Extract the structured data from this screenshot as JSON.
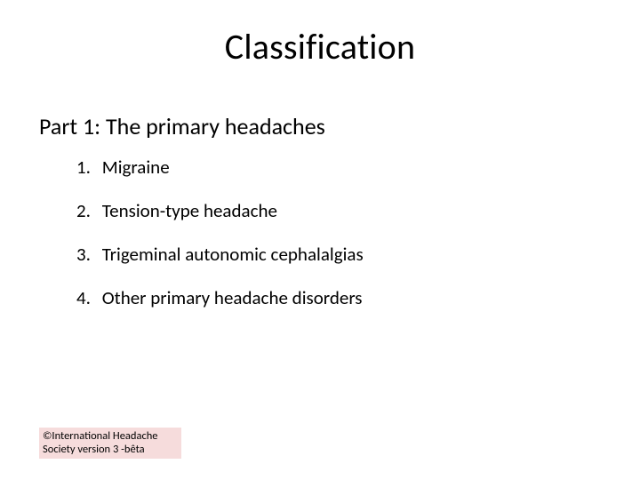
{
  "title": "Classification",
  "subtitle": "Part 1: The primary headaches",
  "items": [
    {
      "num": "1.",
      "text": "Migraine"
    },
    {
      "num": "2.",
      "text": "Tension-type headache"
    },
    {
      "num": "3.",
      "text": "Trigeminal autonomic cephalalgias"
    },
    {
      "num": "4.",
      "text": "Other primary headache disorders"
    }
  ],
  "footer": {
    "line1": "©International Headache",
    "line2": "Society version 3 -bêta"
  },
  "colors": {
    "background": "#ffffff",
    "text": "#000000",
    "footer_bg": "#f6dcdc"
  },
  "typography": {
    "title_fontsize": 40,
    "subtitle_fontsize": 26,
    "item_fontsize": 21,
    "footer_fontsize": 12.5,
    "font_family": "Calibri"
  }
}
